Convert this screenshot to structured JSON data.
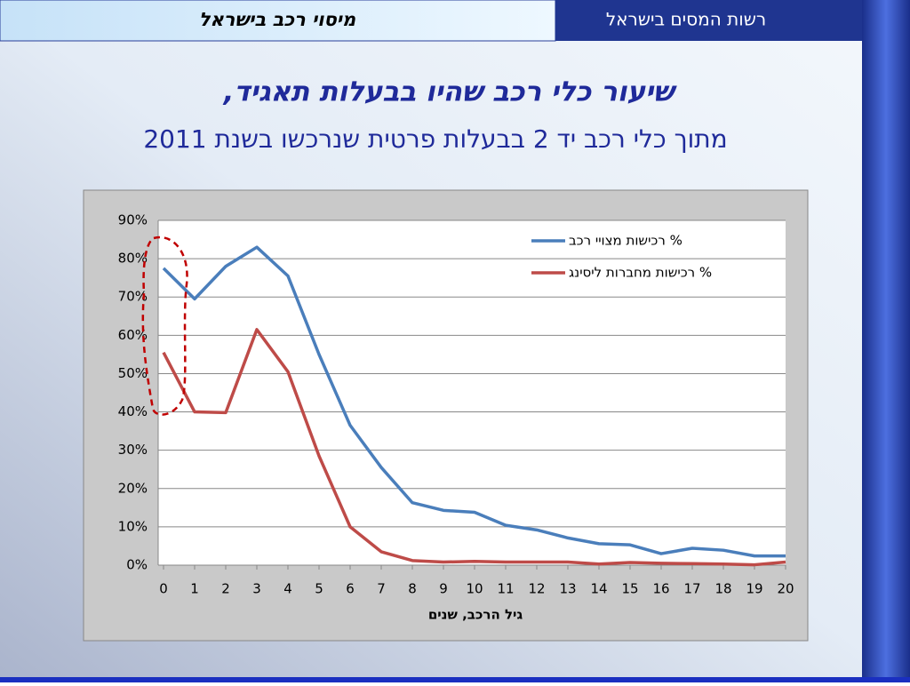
{
  "header": {
    "section_title": "מיסוי רכב בישראל",
    "organization": "רשות המסים בישראל"
  },
  "chart_data": {
    "type": "line",
    "title": "שיעור כלי רכב שהיו בבעלות תאגיד,",
    "subtitle": "מתוך כלי רכב יד 2 בבעלות פרטית שנרכשו בשנת 2011",
    "x_label": "גיל הרכב, שנים",
    "x": [
      0,
      1,
      2,
      3,
      4,
      5,
      6,
      7,
      8,
      9,
      10,
      11,
      12,
      13,
      14,
      15,
      16,
      17,
      18,
      19,
      20
    ],
    "series": [
      {
        "name": "% רכישות מצויי רכב",
        "color": "#4a7ebb",
        "values": [
          77.5,
          69.5,
          78,
          83,
          75.5,
          55,
          36.5,
          25.5,
          16.3,
          14.3,
          13.8,
          10.4,
          9.2,
          7.1,
          5.6,
          5.3,
          3.0,
          4.4,
          3.9,
          2.4,
          2.4
        ]
      },
      {
        "name": "% רכישות מחברות ליסינג",
        "color": "#be4b48",
        "values": [
          55.5,
          40,
          39.8,
          61.5,
          50.5,
          28.5,
          10,
          3.5,
          1.2,
          0.8,
          1,
          0.8,
          0.8,
          0.8,
          0.3,
          0.7,
          0.5,
          0.4,
          0.3,
          0.1,
          0.8
        ]
      }
    ],
    "xlim": [
      0,
      20
    ],
    "xticks": [
      0,
      1,
      2,
      3,
      4,
      5,
      6,
      7,
      8,
      9,
      10,
      11,
      12,
      13,
      14,
      15,
      16,
      17,
      18,
      19,
      20
    ],
    "ylim": [
      0,
      90
    ],
    "yticks": [
      {
        "value": 0,
        "label": "0%"
      },
      {
        "value": 10,
        "label": "10%"
      },
      {
        "value": 20,
        "label": "20%"
      },
      {
        "value": 30,
        "label": "30%"
      },
      {
        "value": 40,
        "label": "40%"
      },
      {
        "value": 50,
        "label": "50%"
      },
      {
        "value": 60,
        "label": "60%"
      },
      {
        "value": 70,
        "label": "70%"
      },
      {
        "value": 80,
        "label": "80%"
      },
      {
        "value": 90,
        "label": "90%"
      }
    ],
    "grid": true,
    "legend": "top-right"
  }
}
